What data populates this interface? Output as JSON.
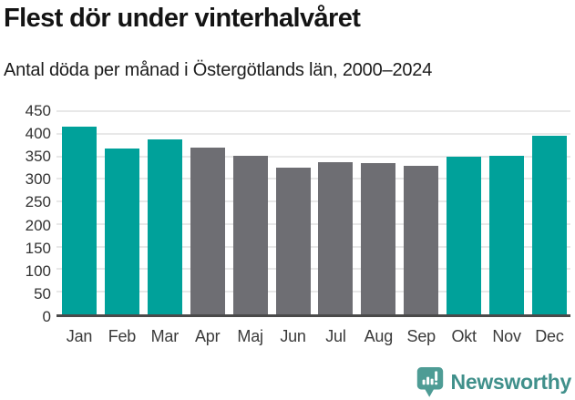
{
  "header": {
    "title": "Flest dör under vinterhalvåret",
    "subtitle": "Antal döda per månad i Östergötlands län, 2000–2024"
  },
  "chart_data": {
    "type": "bar",
    "title": "Flest dör under vinterhalvåret",
    "subtitle": "Antal döda per månad i Östergötlands län, 2000–2024",
    "categories": [
      "Jan",
      "Feb",
      "Mar",
      "Apr",
      "Maj",
      "Jun",
      "Jul",
      "Aug",
      "Sep",
      "Okt",
      "Nov",
      "Dec"
    ],
    "values": [
      415,
      368,
      387,
      370,
      352,
      325,
      337,
      335,
      328,
      349,
      351,
      396
    ],
    "bar_colors": [
      "#00a19a",
      "#00a19a",
      "#00a19a",
      "#6e6e73",
      "#6e6e73",
      "#6e6e73",
      "#6e6e73",
      "#6e6e73",
      "#6e6e73",
      "#00a19a",
      "#00a19a",
      "#00a19a"
    ],
    "highlight_color": "#00a19a",
    "muted_color": "#6e6e73",
    "xlabel": "",
    "ylabel": "",
    "ylim": [
      0,
      450
    ],
    "yticks": [
      0,
      50,
      100,
      150,
      200,
      250,
      300,
      350,
      400,
      450
    ],
    "grid": true,
    "legend": null
  },
  "footer": {
    "brand": "Newsworthy",
    "brand_color": "#40908b",
    "icon_color": "#4e9c95",
    "icon": "newsworthy-chart-bubble-icon"
  }
}
